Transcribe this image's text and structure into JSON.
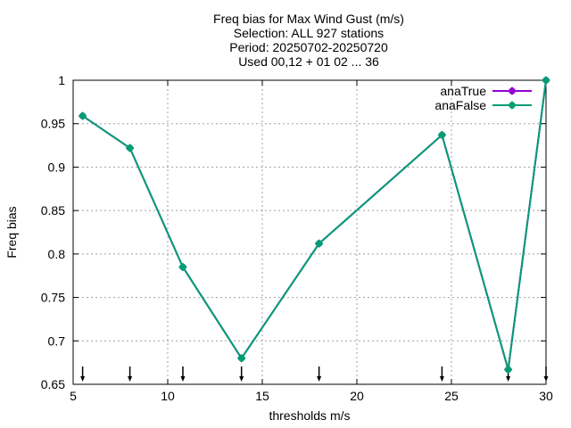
{
  "chart_data": {
    "type": "line",
    "title_lines": [
      "Freq bias  for Max Wind Gust (m/s)",
      "Selection: ALL    927 stations",
      "Period: 20250702-20250720",
      "Used 00,12 + 01 02 ... 36"
    ],
    "xlabel": "thresholds m/s",
    "ylabel": "Freq bias",
    "xlim": [
      5,
      30
    ],
    "ylim": [
      0.65,
      1.0
    ],
    "xticks": [
      5,
      10,
      15,
      20,
      25,
      30
    ],
    "xtick_labels": [
      "5",
      "10",
      "15",
      "20",
      "25",
      "30"
    ],
    "yticks": [
      0.65,
      0.7,
      0.75,
      0.8,
      0.85,
      0.9,
      0.95,
      1.0
    ],
    "ytick_labels": [
      "0.65",
      "0.7",
      "0.75",
      "0.8",
      "0.85",
      "0.9",
      "0.95",
      "1"
    ],
    "grid": true,
    "legend_position": "top-right",
    "x": [
      5.5,
      8.0,
      10.8,
      13.9,
      18.0,
      24.5,
      28.0,
      30.0
    ],
    "series": [
      {
        "name": "anaTrue",
        "color": "#9400d3",
        "values": [
          0.959,
          0.922,
          0.785,
          0.68,
          0.812,
          0.937,
          0.667,
          1.0
        ]
      },
      {
        "name": "anaFalse",
        "color": "#009e73",
        "values": [
          0.959,
          0.922,
          0.785,
          0.68,
          0.812,
          0.937,
          0.667,
          1.0
        ]
      }
    ],
    "threshold_markers": [
      5.5,
      8.0,
      10.8,
      13.9,
      18.0,
      24.5,
      28.0,
      30.0
    ]
  }
}
